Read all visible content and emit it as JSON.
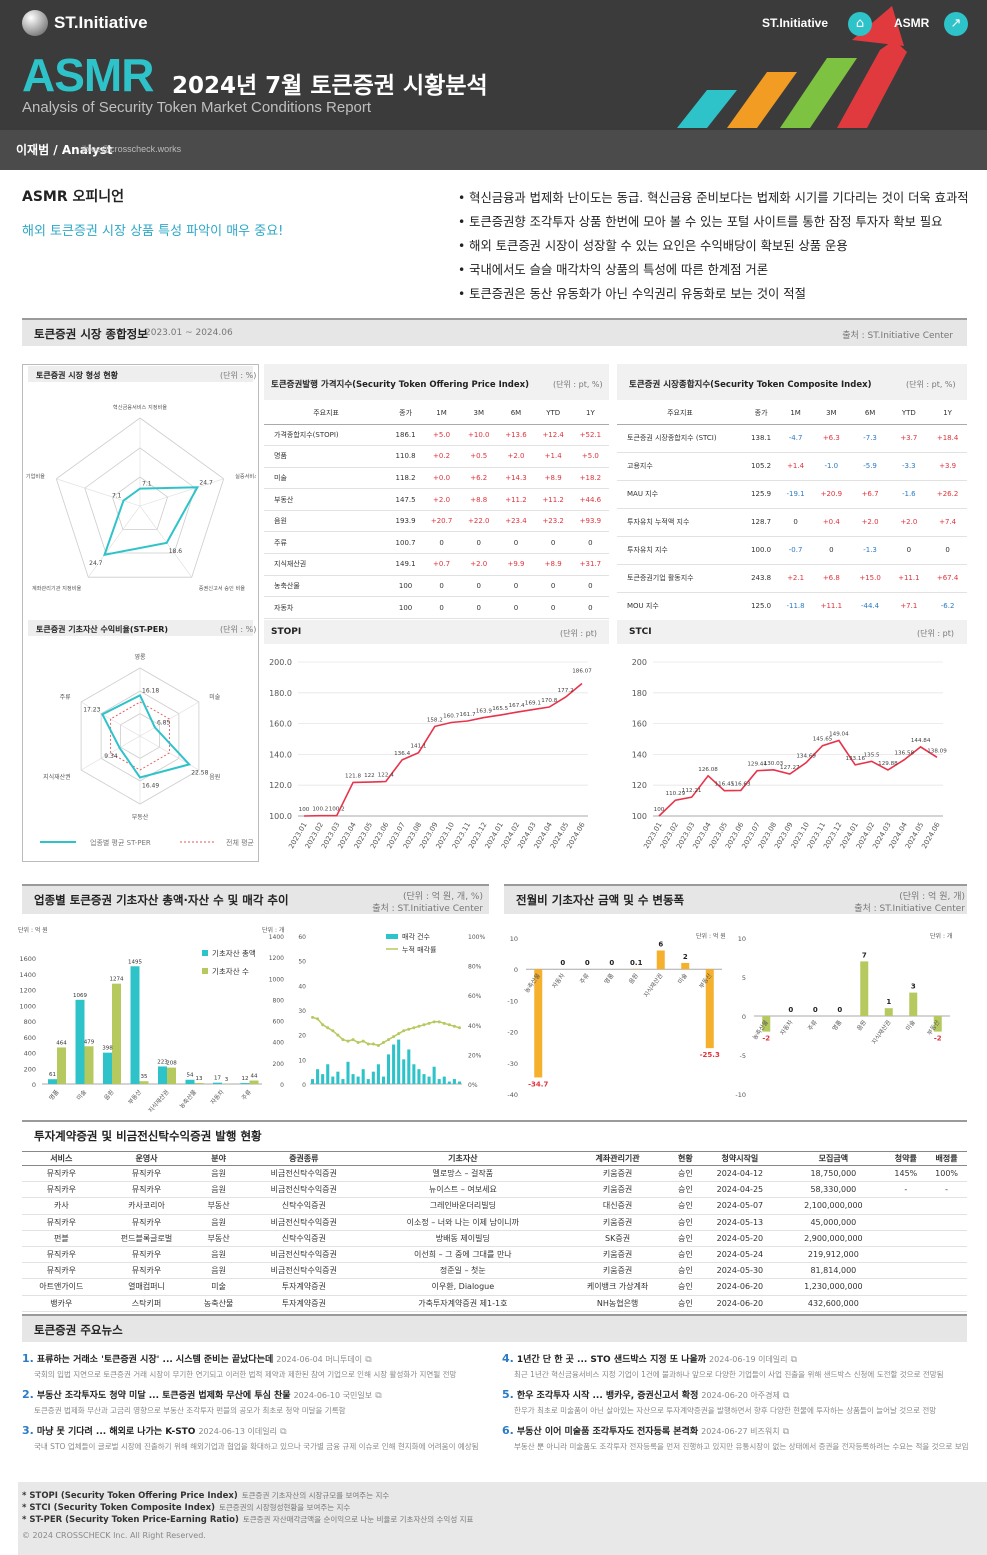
{
  "header": {
    "brand": "ST.Initiative",
    "asmr": "ASMR",
    "title": "2024년 7월 토큰증권 시황분석",
    "subtitle": "Analysis of Security Token Market Conditions Report",
    "author": "이재범 / Analyst",
    "email": "jblee@crosscheck.works",
    "nav_brand": "ST.Initiative",
    "nav_asmr": "ASMR"
  },
  "opinion": {
    "heading": "ASMR 오피니언",
    "teaser": "해외 토큰증권 시장 상품 특성 파악이 매우 중요!",
    "bullets": [
      "• 혁신금융과 법제화 난이도는 동급. 혁신금융 준비보다는 법제화 시기를 기다리는 것이 더욱 효과적",
      "• 토큰증권향 조각투자 상품 한번에 모아 볼 수 있는 포털 사이트를 통한 잠정 투자자 확보 필요",
      "• 해외 토큰증권 시장이 성장할 수 있는 요인은 수익배당이 확보된 상품 운용",
      "• 국내에서도 슬슬 매각차익 상품의 특성에 따른 한계점 거론",
      "• 토큰증권은 동산 유동화가 아닌 수익권리 유동화로 보는 것이 적절"
    ]
  },
  "overview": {
    "title": "토큰증권 시장 종합정보",
    "period": "2023.01 ~ 2024.06",
    "source": "출처 : ST.Initiative Center"
  },
  "radar1": {
    "title": "토큰증권 시장 형성 현황",
    "unit": "(단위 : %)",
    "labels": [
      "혁신금융서비스 지정비율",
      "실증서비스 비율",
      "증권신고서 승인 비율",
      "계좌관리기관 지정비율",
      "배당금 지급 기업비율"
    ],
    "values": [
      7.1,
      24.7,
      18.6,
      24.7,
      7.1
    ]
  },
  "radar2": {
    "title": "토큰증권 기초자산 수익비율(ST-PER)",
    "unit": "(단위 : %)",
    "labels": [
      "영롱",
      "미술",
      "음원",
      "부동산",
      "지식재산권",
      "주류"
    ],
    "values": [
      16.18,
      6.85,
      22.58,
      16.49,
      9.34,
      17.23
    ],
    "legend_a": "업종별 평균 ST-PER",
    "legend_b": "전체 평균"
  },
  "stopi_table": {
    "title": "토큰증권발행 가격지수(Security Token Offering Price Index)",
    "unit": "(단위 : pt, %)",
    "headers": [
      "주요지표",
      "종가",
      "1M",
      "3M",
      "6M",
      "YTD",
      "1Y"
    ],
    "rows": [
      [
        "가격종합지수(STOPI)",
        "186.1",
        "+5.0",
        "+10.0",
        "+13.6",
        "+12.4",
        "+52.1"
      ],
      [
        "명품",
        "110.8",
        "+0.2",
        "+0.5",
        "+2.0",
        "+1.4",
        "+5.0"
      ],
      [
        "미술",
        "118.2",
        "+0.0",
        "+6.2",
        "+14.3",
        "+8.9",
        "+18.2"
      ],
      [
        "부동산",
        "147.5",
        "+2.0",
        "+8.8",
        "+11.2",
        "+11.2",
        "+44.6"
      ],
      [
        "음원",
        "193.9",
        "+20.7",
        "+22.0",
        "+23.4",
        "+23.2",
        "+93.9"
      ],
      [
        "주류",
        "100.7",
        "0",
        "0",
        "0",
        "0",
        "0"
      ],
      [
        "지식재산권",
        "149.1",
        "+0.7",
        "+2.0",
        "+9.9",
        "+8.9",
        "+31.7"
      ],
      [
        "농축산물",
        "100",
        "0",
        "0",
        "0",
        "0",
        "0"
      ],
      [
        "자동차",
        "100",
        "0",
        "0",
        "0",
        "0",
        "0"
      ]
    ]
  },
  "stci_table": {
    "title": "토큰증권 시장종합지수(Security Token Composite Index)",
    "unit": "(단위 : pt, %)",
    "headers": [
      "주요지표",
      "종가",
      "1M",
      "3M",
      "6M",
      "YTD",
      "1Y"
    ],
    "rows": [
      [
        "토큰증권 시장종합지수 (STCI)",
        "138.1",
        "-4.7",
        "+6.3",
        "-7.3",
        "+3.7",
        "+18.4"
      ],
      [
        "고용지수",
        "105.2",
        "+1.4",
        "-1.0",
        "-5.9",
        "-3.3",
        "+3.9"
      ],
      [
        "MAU 지수",
        "125.9",
        "-19.1",
        "+20.9",
        "+6.7",
        "-1.6",
        "+26.2"
      ],
      [
        "투자유치 누적액 지수",
        "128.7",
        "0",
        "+0.4",
        "+2.0",
        "+2.0",
        "+7.4"
      ],
      [
        "투자유치 지수",
        "100.0",
        "-0.7",
        "0",
        "-1.3",
        "0",
        "0"
      ],
      [
        "토큰증권기업 활동지수",
        "243.8",
        "+2.1",
        "+6.8",
        "+15.0",
        "+11.1",
        "+67.4"
      ],
      [
        "MOU 지수",
        "125.0",
        "-11.8",
        "+11.1",
        "-44.4",
        "+7.1",
        "-6.2"
      ]
    ]
  },
  "months": [
    "2023.01",
    "2023.02",
    "2023.03",
    "2023.04",
    "2023.05",
    "2023.06",
    "2023.07",
    "2023.08",
    "2023.09",
    "2023.10",
    "2023.11",
    "2023.12",
    "2024.01",
    "2024.02",
    "2024.03",
    "2024.04",
    "2024.05",
    "2024.06"
  ],
  "stopi_chart": {
    "title": "STOPI",
    "unit": "(단위 : pt)",
    "values": [
      100.0,
      100.2,
      100.2,
      121.8,
      122.0,
      122.4,
      136.4,
      141.1,
      158.2,
      160.7,
      161.7,
      163.9,
      165.5,
      167.4,
      169.1,
      170.8,
      177.2,
      186.07
    ],
    "ylim": [
      100,
      200
    ]
  },
  "stci_chart": {
    "title": "STCI",
    "unit": "(단위 : pt)",
    "values": [
      100,
      110.29,
      112.21,
      126.08,
      116.45,
      116.63,
      129.44,
      130.03,
      127.27,
      134.69,
      145.65,
      149.04,
      133.16,
      135.5,
      129.88,
      136.58,
      144.84,
      138.09
    ],
    "ylim": [
      100,
      200
    ]
  },
  "sector": {
    "title": "업종별 토큰증권 기초자산 총액·자산 수 및 매각 추이",
    "unit": "(단위 : 억 원, 개, %)",
    "source": "출처 : ST.Initiative Center",
    "axis_left": "단위 : 억 원",
    "axis_right": "단위 : 개",
    "legend_total": "기초자산 총액",
    "legend_count": "기초자산 수",
    "categories": [
      "명품",
      "미술",
      "음원",
      "부동산",
      "지식재산권",
      "농축산물",
      "자동차",
      "주류"
    ],
    "totals": [
      61,
      1069,
      398,
      1495,
      223,
      54,
      17,
      12
    ],
    "counts": [
      464,
      479,
      1274,
      35,
      208,
      13,
      3,
      44
    ],
    "legend_sales": "매각 건수",
    "legend_rate": "누적 매각률"
  },
  "monthly_change": {
    "title": "전월비 기초자산 금액 및 수 변동폭",
    "unit": "(단위 : 억 원, 개)",
    "source": "출처 : ST.Initiative Center",
    "amount_unit": "단위 : 억 원",
    "count_unit": "단위 : 개",
    "categories": [
      "농축산물",
      "자동차",
      "주류",
      "명품",
      "음원",
      "지식재산권",
      "미술",
      "부동산"
    ],
    "amount": [
      -34.7,
      0,
      0,
      0,
      0.1,
      6.0,
      2.0,
      -25.3
    ],
    "count": [
      -2,
      0,
      0,
      0,
      7,
      1,
      3,
      -2
    ]
  },
  "issuance": {
    "title": "투자계약증권 및 비금전신탁수익증권 발행 현황",
    "headers": [
      "서비스",
      "운영사",
      "분야",
      "증권종류",
      "기초자산",
      "계좌관리기관",
      "현황",
      "청약시작일",
      "모집금액",
      "청약률",
      "배정률"
    ],
    "rows": [
      [
        "뮤직카우",
        "뮤직카우",
        "음원",
        "비금전신탁수익증권",
        "멜로망스 – 걸작품",
        "키움증권",
        "승인",
        "2024-04-12",
        "18,750,000",
        "145%",
        "100%"
      ],
      [
        "뮤직카우",
        "뮤직카우",
        "음원",
        "비금전신탁수익증권",
        "뉴이스트 – 여보세요",
        "키움증권",
        "승인",
        "2024-04-25",
        "58,330,000",
        "-",
        "-"
      ],
      [
        "카사",
        "카사코리아",
        "부동산",
        "신탁수익증권",
        "그레인바운더리빌딩",
        "대신증권",
        "승인",
        "2024-05-07",
        "2,100,000,000",
        "",
        ""
      ],
      [
        "뮤직카우",
        "뮤직카우",
        "음원",
        "비금전신탁수익증권",
        "이소정 – 너와 나는 이제 남이니까",
        "키움증권",
        "승인",
        "2024-05-13",
        "45,000,000",
        "",
        ""
      ],
      [
        "펀블",
        "펀드블록글로벌",
        "부동산",
        "신탁수익증권",
        "방배동 제이빌딩",
        "SK증권",
        "승인",
        "2024-05-20",
        "2,900,000,000",
        "",
        ""
      ],
      [
        "뮤직카우",
        "뮤직카우",
        "음원",
        "비금전신탁수익증권",
        "이선희 – 그 중에 그대를 만나",
        "키움증권",
        "승인",
        "2024-05-24",
        "219,912,000",
        "",
        ""
      ],
      [
        "뮤직카우",
        "뮤직카우",
        "음원",
        "비금전신탁수익증권",
        "정준일 – 첫눈",
        "키움증권",
        "승인",
        "2024-05-30",
        "81,814,000",
        "",
        ""
      ],
      [
        "아트앤가이드",
        "열매컴퍼니",
        "미술",
        "투자계약증권",
        "이우환, Dialogue",
        "케이뱅크 가상계좌",
        "승인",
        "2024-06-20",
        "1,230,000,000",
        "",
        ""
      ],
      [
        "뱅카우",
        "스탁키퍼",
        "농축산물",
        "투자계약증권",
        "가축투자계약증권 제1-1호",
        "NH농협은행",
        "승인",
        "2024-06-20",
        "432,600,000",
        "",
        ""
      ]
    ]
  },
  "news": {
    "title": "토큰증권 주요뉴스",
    "items": [
      {
        "num": "1.",
        "title": "표류하는 거래소 '토큰증권 시장' ... 시스템 준비는 끝났다는데",
        "date": "2024-06-04 머니투데이",
        "desc": "국회의 입법 지연으로 토큰증권 거래 시장이 무기한 연기되고 이러한 법적 제약과 제한된 참여 기업으로 인해 시장 활성화가 지연될 전망"
      },
      {
        "num": "2.",
        "title": "부동산 조각투자도 청약 미달 ... 토큰증권 법제화 무산에 투심 찬물",
        "date": "2024-06-10 국민일보",
        "desc": "토큰증권 법제화 무산과 고금리 영향으로 부동산 조각투자 펀블의 공모가 최초로 청약 미달을 기록함"
      },
      {
        "num": "3.",
        "title": "마냥 못 기다려 ... 해외로 나가는 K-STO",
        "date": "2024-06-13 이데일리",
        "desc": "국내 STO 업체들이 글로벌 시장에 진출하기 위해 해외기업과 협업을 확대하고 있으나 국가별 금융 규제 이슈로 인해 현지화에 어려움이 예상됨"
      },
      {
        "num": "4.",
        "title": "1년간 단 한 곳 ... STO 샌드박스 지정 또 나올까",
        "date": "2024-06-19 이데일리",
        "desc": "최근 1년간 혁신금융서비스 지정 기업이 1건에 불과하나 앞으로 다양한 기업들이 사업 진출을 위해 샌드박스 신청에 도전할 것으로 전망됨"
      },
      {
        "num": "5.",
        "title": "한우 조각투자 시작 ... 뱅카우, 증권신고서 확정",
        "date": "2024-06-20 아주경제",
        "desc": "한우가 최초로 미술품이 아닌 살아있는 자산으로 투자계약증권을 발행하면서 향후 다양한 현물에 투자하는 상품들이 늘어날 것으로 전망"
      },
      {
        "num": "6.",
        "title": "부동산 이어 미술품 조각투자도 전자등록 본격화",
        "date": "2024-06-27 비즈워치",
        "desc": "부동산 뿐 아니라 미술품도 조각투자 전자등록을 먼저 진행하고 있지만 유통시장이 없는 상태에서 증권을 전자등록하려는 수요는 적을 것으로 보임"
      }
    ]
  },
  "footer": {
    "notes": [
      {
        "term": "* STOPI (Security Token Offering Price Index)",
        "desc": "토큰증권 기초자산의 시장규모를 보여주는 지수"
      },
      {
        "term": "* STCI (Security Token Composite Index)",
        "desc": "토큰증권의 시장형성현황을 보여주는 지수"
      },
      {
        "term": "* ST-PER (Security Token Price-Earning Ratio)",
        "desc": "토큰증권 자산매각금액을 순이익으로 나눈 비율로 기초자산의 수익성 지표"
      }
    ],
    "copyright": "© 2024 CROSSCHECK Inc. All Right Reserved."
  }
}
